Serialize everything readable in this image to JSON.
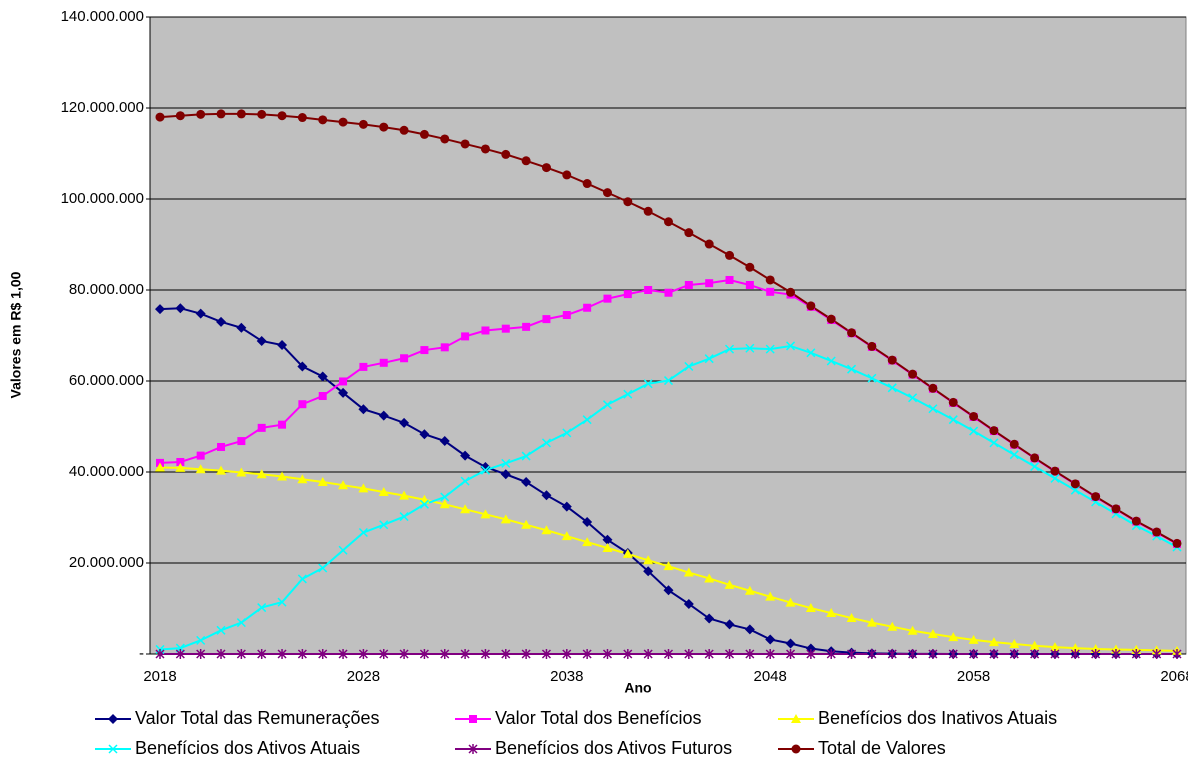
{
  "chart_data": {
    "type": "line",
    "x_label": "Ano",
    "y_label": "Valores em R$ 1,00",
    "categories": [
      "2018",
      null,
      null,
      null,
      null,
      null,
      null,
      null,
      null,
      null,
      "2028",
      null,
      null,
      null,
      null,
      null,
      null,
      null,
      null,
      null,
      "2038",
      null,
      null,
      null,
      null,
      null,
      null,
      null,
      null,
      null,
      "2048",
      null,
      null,
      null,
      null,
      null,
      null,
      null,
      null,
      null,
      "2058",
      null,
      null,
      null,
      null,
      null,
      null,
      null,
      null,
      null,
      "2068"
    ],
    "ylim": [
      0,
      140000000
    ],
    "yticks": [
      {
        "value": 0,
        "label": "-"
      },
      {
        "value": 20000000,
        "label": "20.000.000"
      },
      {
        "value": 40000000,
        "label": "40.000.000"
      },
      {
        "value": 60000000,
        "label": "60.000.000"
      },
      {
        "value": 80000000,
        "label": "80.000.000"
      },
      {
        "value": 100000000,
        "label": "100.000.000"
      },
      {
        "value": 120000000,
        "label": "120.000.000"
      },
      {
        "value": 140000000,
        "label": "140.000.000"
      }
    ],
    "grid": true,
    "background": "#c0c0c0",
    "legend": "bottom",
    "series": [
      {
        "name": "Valor Total das Remunerações",
        "color": "#000080",
        "marker": "diamond",
        "values": [
          75800000,
          76000000,
          74800000,
          73000000,
          71700000,
          68800000,
          67900000,
          63200000,
          61000000,
          57400000,
          53800000,
          52400000,
          50800000,
          48300000,
          46800000,
          43600000,
          41100000,
          39500000,
          37800000,
          34900000,
          32400000,
          29000000,
          25100000,
          22200000,
          18200000,
          14000000,
          11000000,
          7800000,
          6500000,
          5400000,
          3200000,
          2300000,
          1200000,
          600000,
          300000,
          150000,
          80000,
          40000,
          20000,
          10000,
          0,
          0,
          0,
          0,
          0,
          0,
          0,
          0,
          0,
          0,
          0
        ]
      },
      {
        "name": "Valor Total dos Benefícios",
        "color": "#ff00ff",
        "marker": "square",
        "values": [
          42000000,
          42200000,
          43600000,
          45500000,
          46800000,
          49700000,
          50400000,
          54900000,
          56700000,
          59900000,
          63100000,
          64000000,
          65000000,
          66800000,
          67400000,
          69800000,
          71100000,
          71500000,
          71900000,
          73600000,
          74500000,
          76100000,
          78100000,
          79100000,
          80000000,
          79400000,
          81100000,
          81500000,
          82200000,
          81100000,
          79600000,
          79000000,
          76300000,
          73400000,
          70500000,
          67500000,
          64500000,
          61400000,
          58300000,
          55200000,
          52100000,
          49000000,
          46000000,
          43000000,
          40100000,
          37300000,
          34500000,
          31800000,
          29100000,
          26700000,
          24200000
        ]
      },
      {
        "name": "Benefícios dos Inativos Atuais",
        "color": "#ffff00",
        "marker": "triangle",
        "values": [
          41000000,
          40900000,
          40600000,
          40300000,
          39900000,
          39500000,
          39000000,
          38400000,
          37800000,
          37100000,
          36400000,
          35600000,
          34800000,
          33900000,
          32900000,
          31800000,
          30700000,
          29600000,
          28400000,
          27200000,
          25900000,
          24600000,
          23300000,
          22000000,
          20600000,
          19300000,
          17900000,
          16600000,
          15200000,
          13900000,
          12600000,
          11300000,
          10100000,
          9000000,
          7900000,
          6900000,
          6000000,
          5100000,
          4400000,
          3700000,
          3100000,
          2600000,
          2200000,
          1800000,
          1500000,
          1300000,
          1100000,
          1000000,
          900000,
          800000,
          700000
        ]
      },
      {
        "name": "Benefícios dos Ativos Atuais",
        "color": "#00ffff",
        "marker": "x",
        "values": [
          1000000,
          1300000,
          3000000,
          5200000,
          6900000,
          10200000,
          11400000,
          16500000,
          18900000,
          22800000,
          26700000,
          28400000,
          30200000,
          32900000,
          34500000,
          38000000,
          40400000,
          41900000,
          43500000,
          46400000,
          48600000,
          51500000,
          54800000,
          57100000,
          59400000,
          60100000,
          63200000,
          64900000,
          67000000,
          67200000,
          67000000,
          67700000,
          66200000,
          64400000,
          62600000,
          60600000,
          58500000,
          56300000,
          53900000,
          51500000,
          49000000,
          46400000,
          43800000,
          41200000,
          38600000,
          36000000,
          33400000,
          30800000,
          28200000,
          25900000,
          23500000
        ]
      },
      {
        "name": "Benefícios dos Ativos Futuros",
        "color": "#800080",
        "marker": "star",
        "values": [
          0,
          0,
          0,
          0,
          0,
          0,
          0,
          0,
          0,
          0,
          0,
          0,
          0,
          0,
          0,
          0,
          0,
          0,
          0,
          0,
          0,
          0,
          0,
          0,
          0,
          0,
          0,
          0,
          0,
          0,
          0,
          0,
          0,
          0,
          0,
          0,
          0,
          0,
          0,
          0,
          0,
          0,
          0,
          0,
          0,
          0,
          0,
          0,
          0,
          0,
          0
        ]
      },
      {
        "name": "Total de Valores",
        "color": "#800000",
        "marker": "circle",
        "values": [
          118000000,
          118300000,
          118600000,
          118700000,
          118700000,
          118600000,
          118300000,
          117900000,
          117400000,
          116900000,
          116400000,
          115800000,
          115100000,
          114200000,
          113200000,
          112100000,
          111000000,
          109800000,
          108400000,
          106900000,
          105300000,
          103400000,
          101400000,
          99400000,
          97300000,
          95000000,
          92600000,
          90100000,
          87600000,
          85000000,
          82200000,
          79500000,
          76500000,
          73600000,
          70600000,
          67600000,
          64600000,
          61500000,
          58400000,
          55300000,
          52200000,
          49100000,
          46100000,
          43100000,
          40200000,
          37400000,
          34600000,
          31900000,
          29200000,
          26800000,
          24300000
        ]
      }
    ]
  }
}
